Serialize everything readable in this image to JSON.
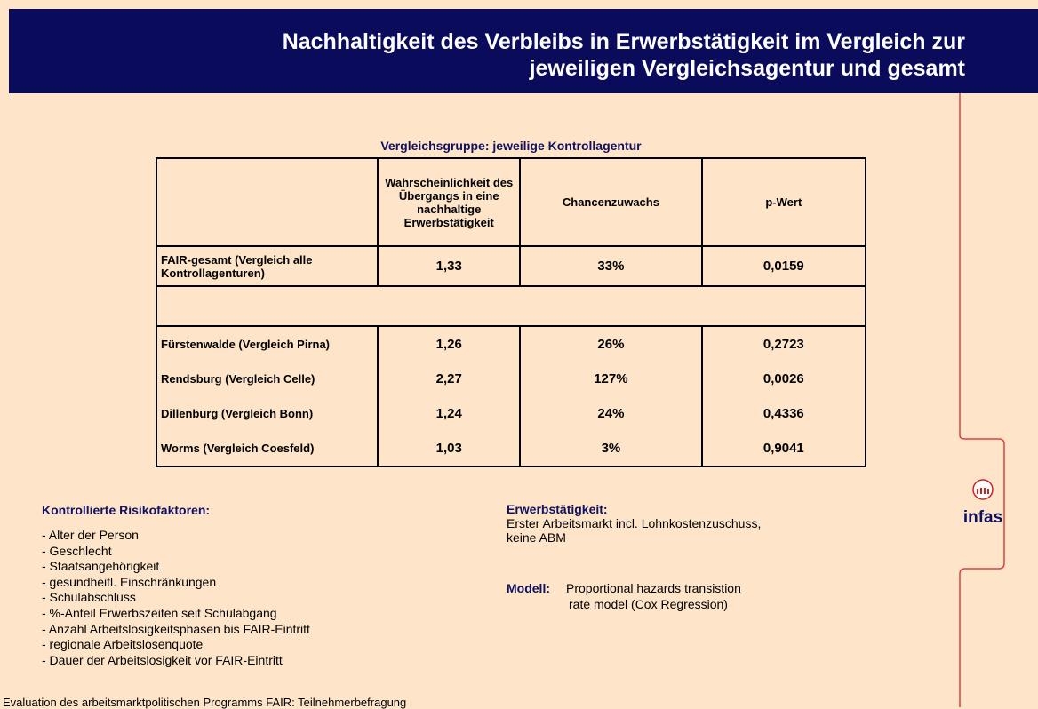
{
  "title": [
    "Nachhaltigkeit des Verbleibs in Erwerbstätigkeit im Vergleich zur",
    "jeweiligen Vergleichsagentur und gesamt"
  ],
  "table": {
    "caption": "Vergleichsgruppe: jeweilige Kontrollagentur",
    "header": [
      "Wahrscheinlichkeit des Übergangs in eine nachhaltige Erwerbstätigkeit",
      "Chancenzuwachs",
      "p-Wert"
    ],
    "total": [
      "FAIR-gesamt (Vergleich alle Kontrollagenturen)",
      "1,33",
      "33%",
      "0,0159"
    ],
    "rows": [
      [
        "Fürstenwalde (Vergleich Pirna)",
        "1,26",
        "26%",
        "0,2723"
      ],
      [
        "Rendsburg (Vergleich Celle)",
        "2,27",
        "127%",
        "0,0026"
      ],
      [
        "Dillenburg (Vergleich Bonn)",
        "1,24",
        "24%",
        "0,4336"
      ],
      [
        "Worms (Vergleich Coesfeld)",
        "1,03",
        "3%",
        "0,9041"
      ]
    ]
  },
  "risk": {
    "heading": "Kontrollierte Risikofaktoren:",
    "items": [
      "- Alter der Person",
      "- Geschlecht",
      "- Staatsangehörigkeit",
      "- gesundheitl. Einschränkungen",
      "- Schulabschluss",
      "- %-Anteil Erwerbszeiten seit Schulabgang",
      "- Anzahl Arbeitslosigkeitsphasen bis FAIR-Eintritt",
      "- regionale Arbeitslosenquote",
      "- Dauer der Arbeitslosigkeit vor FAIR-Eintritt"
    ]
  },
  "employment": {
    "heading": "Erwerbstätigkeit:",
    "lines": [
      "Erster Arbeitsmarkt incl. Lohnkostenzuschuss,",
      "keine ABM"
    ]
  },
  "model": {
    "label": "Modell:",
    "lines": [
      "Proportional hazards transistion",
      "rate model  (Cox Regression)"
    ]
  },
  "logo": "infas",
  "footer": "Evaluation des arbeitsmarktpolitischen Programms FAIR: Teilnehmerbefragung"
}
